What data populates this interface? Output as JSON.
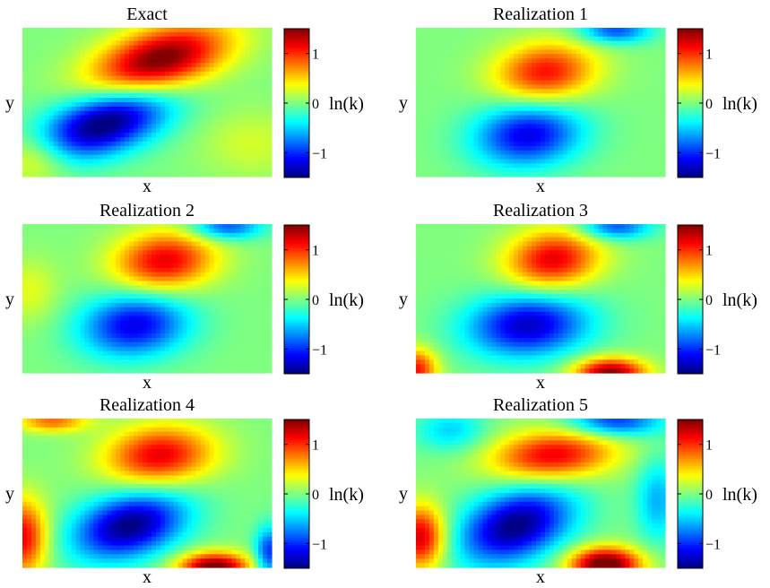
{
  "colorbar_ticks": [
    "1",
    "0",
    "−1"
  ],
  "colorbar_label": "ln(k)",
  "chart_data": [
    {
      "type": "heatmap",
      "title": "Exact",
      "xlabel": "x",
      "ylabel": "y",
      "colorbar": {
        "label": "ln(k)",
        "range": [
          -1.5,
          1.5
        ],
        "ticks": [
          1,
          0,
          -1
        ],
        "colormap": "jet"
      },
      "blobs": [
        {
          "cx": 0.55,
          "cy": 0.22,
          "sx": 0.17,
          "sy": 0.17,
          "a": 1.6,
          "tilt": 0.5
        },
        {
          "cx": 0.33,
          "cy": 0.64,
          "sx": 0.16,
          "sy": 0.17,
          "a": -1.6,
          "tilt": 0.5
        },
        {
          "cx": 0.05,
          "cy": 0.88,
          "sx": 0.1,
          "sy": 0.12,
          "a": 0.5,
          "tilt": 0
        },
        {
          "cx": 0.92,
          "cy": 0.78,
          "sx": 0.14,
          "sy": 0.16,
          "a": 0.25,
          "tilt": 0
        }
      ]
    },
    {
      "type": "heatmap",
      "title": "Realization 1",
      "xlabel": "x",
      "ylabel": "y",
      "colorbar": {
        "label": "ln(k)",
        "range": [
          -1.5,
          1.5
        ],
        "ticks": [
          1,
          0,
          -1
        ],
        "colormap": "jet"
      },
      "blobs": [
        {
          "cx": 0.52,
          "cy": 0.3,
          "sx": 0.14,
          "sy": 0.14,
          "a": 1.1,
          "tilt": 0.1
        },
        {
          "cx": 0.45,
          "cy": 0.72,
          "sx": 0.15,
          "sy": 0.15,
          "a": -1.2,
          "tilt": 0.1
        },
        {
          "cx": 0.8,
          "cy": 0.02,
          "sx": 0.1,
          "sy": 0.06,
          "a": -0.9,
          "tilt": 0
        }
      ]
    },
    {
      "type": "heatmap",
      "title": "Realization 2",
      "xlabel": "x",
      "ylabel": "y",
      "colorbar": {
        "label": "ln(k)",
        "range": [
          -1.5,
          1.5
        ],
        "ticks": [
          1,
          0,
          -1
        ],
        "colormap": "jet"
      },
      "blobs": [
        {
          "cx": 0.57,
          "cy": 0.25,
          "sx": 0.14,
          "sy": 0.14,
          "a": 1.2,
          "tilt": 0.1
        },
        {
          "cx": 0.45,
          "cy": 0.68,
          "sx": 0.15,
          "sy": 0.15,
          "a": -1.2,
          "tilt": 0.1
        },
        {
          "cx": 0.82,
          "cy": 0.02,
          "sx": 0.1,
          "sy": 0.06,
          "a": -0.9,
          "tilt": 0
        },
        {
          "cx": 0.03,
          "cy": 0.45,
          "sx": 0.08,
          "sy": 0.15,
          "a": 0.3,
          "tilt": 0
        }
      ]
    },
    {
      "type": "heatmap",
      "title": "Realization 3",
      "xlabel": "x",
      "ylabel": "y",
      "colorbar": {
        "label": "ln(k)",
        "range": [
          -1.5,
          1.5
        ],
        "ticks": [
          1,
          0,
          -1
        ],
        "colormap": "jet"
      },
      "blobs": [
        {
          "cx": 0.55,
          "cy": 0.24,
          "sx": 0.13,
          "sy": 0.14,
          "a": 1.2,
          "tilt": 0.1
        },
        {
          "cx": 0.45,
          "cy": 0.68,
          "sx": 0.17,
          "sy": 0.15,
          "a": -1.3,
          "tilt": 0.1
        },
        {
          "cx": 0.78,
          "cy": 1.0,
          "sx": 0.1,
          "sy": 0.07,
          "a": 1.5,
          "tilt": 0
        },
        {
          "cx": 0.0,
          "cy": 0.98,
          "sx": 0.06,
          "sy": 0.1,
          "a": 1.1,
          "tilt": 0
        },
        {
          "cx": 0.8,
          "cy": 0.02,
          "sx": 0.1,
          "sy": 0.06,
          "a": -0.9,
          "tilt": 0
        }
      ]
    },
    {
      "type": "heatmap",
      "title": "Realization 4",
      "xlabel": "x",
      "ylabel": "y",
      "colorbar": {
        "label": "ln(k)",
        "range": [
          -1.5,
          1.5
        ],
        "ticks": [
          1,
          0,
          -1
        ],
        "colormap": "jet"
      },
      "blobs": [
        {
          "cx": 0.55,
          "cy": 0.25,
          "sx": 0.15,
          "sy": 0.14,
          "a": 1.2,
          "tilt": 0.1
        },
        {
          "cx": 0.43,
          "cy": 0.72,
          "sx": 0.15,
          "sy": 0.16,
          "a": -1.5,
          "tilt": 0.3
        },
        {
          "cx": 0.77,
          "cy": 1.0,
          "sx": 0.1,
          "sy": 0.07,
          "a": 1.6,
          "tilt": 0
        },
        {
          "cx": 0.0,
          "cy": 0.8,
          "sx": 0.07,
          "sy": 0.18,
          "a": 1.2,
          "tilt": 0
        },
        {
          "cx": 0.12,
          "cy": 0.02,
          "sx": 0.1,
          "sy": 0.05,
          "a": 0.8,
          "tilt": 0
        },
        {
          "cx": 0.99,
          "cy": 0.9,
          "sx": 0.04,
          "sy": 0.12,
          "a": -1.0,
          "tilt": 0
        }
      ]
    },
    {
      "type": "heatmap",
      "title": "Realization 5",
      "xlabel": "x",
      "ylabel": "y",
      "colorbar": {
        "label": "ln(k)",
        "range": [
          -1.5,
          1.5
        ],
        "ticks": [
          1,
          0,
          -1
        ],
        "colormap": "jet"
      },
      "blobs": [
        {
          "cx": 0.55,
          "cy": 0.25,
          "sx": 0.17,
          "sy": 0.12,
          "a": 1.2,
          "tilt": 0.2
        },
        {
          "cx": 0.4,
          "cy": 0.72,
          "sx": 0.15,
          "sy": 0.18,
          "a": -1.5,
          "tilt": 0.3
        },
        {
          "cx": 0.8,
          "cy": 0.02,
          "sx": 0.13,
          "sy": 0.07,
          "a": -1.0,
          "tilt": 0
        },
        {
          "cx": 0.76,
          "cy": 0.98,
          "sx": 0.1,
          "sy": 0.08,
          "a": 1.7,
          "tilt": 0
        },
        {
          "cx": 0.02,
          "cy": 0.8,
          "sx": 0.07,
          "sy": 0.15,
          "a": 1.3,
          "tilt": 0
        },
        {
          "cx": 0.14,
          "cy": 0.08,
          "sx": 0.1,
          "sy": 0.1,
          "a": -0.5,
          "tilt": 0
        },
        {
          "cx": 0.97,
          "cy": 0.55,
          "sx": 0.06,
          "sy": 0.2,
          "a": -0.6,
          "tilt": 0
        }
      ]
    }
  ]
}
